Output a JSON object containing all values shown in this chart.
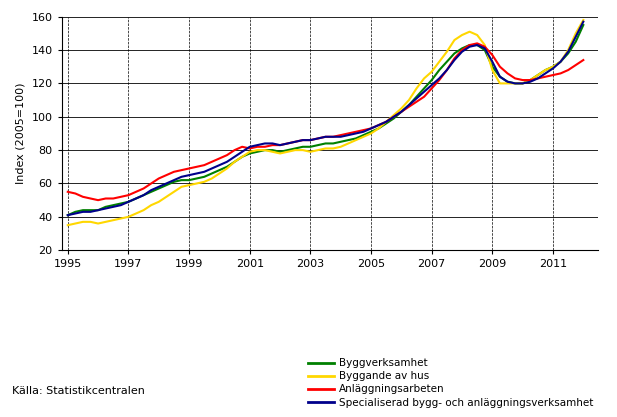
{
  "title": "",
  "ylabel": "Index (2005=100)",
  "xlabel": "",
  "source": "Källa: Statistikcentralen",
  "ylim": [
    20,
    160
  ],
  "xlim": [
    1994.8,
    2012.5
  ],
  "yticks": [
    20,
    40,
    60,
    80,
    100,
    120,
    140,
    160
  ],
  "xticks": [
    1995,
    1997,
    1999,
    2001,
    2003,
    2005,
    2007,
    2009,
    2011
  ],
  "colors": {
    "Byggverksamhet": "#008000",
    "Byggande av hus": "#FFD700",
    "Anläggningsarbeten": "#FF0000",
    "Specialiserad bygg- och anläggningsverksamhet": "#00008B"
  },
  "series": {
    "Byggverksamhet": {
      "x": [
        1995.0,
        1995.25,
        1995.5,
        1995.75,
        1996.0,
        1996.25,
        1996.5,
        1996.75,
        1997.0,
        1997.25,
        1997.5,
        1997.75,
        1998.0,
        1998.25,
        1998.5,
        1998.75,
        1999.0,
        1999.25,
        1999.5,
        1999.75,
        2000.0,
        2000.25,
        2000.5,
        2000.75,
        2001.0,
        2001.25,
        2001.5,
        2001.75,
        2002.0,
        2002.25,
        2002.5,
        2002.75,
        2003.0,
        2003.25,
        2003.5,
        2003.75,
        2004.0,
        2004.25,
        2004.5,
        2004.75,
        2005.0,
        2005.25,
        2005.5,
        2005.75,
        2006.0,
        2006.25,
        2006.5,
        2006.75,
        2007.0,
        2007.25,
        2007.5,
        2007.75,
        2008.0,
        2008.25,
        2008.5,
        2008.75,
        2009.0,
        2009.25,
        2009.5,
        2009.75,
        2010.0,
        2010.25,
        2010.5,
        2010.75,
        2011.0,
        2011.25,
        2011.5,
        2011.75,
        2012.0
      ],
      "y": [
        41,
        43,
        44,
        44,
        44,
        46,
        47,
        48,
        49,
        51,
        53,
        55,
        57,
        59,
        61,
        62,
        62,
        63,
        64,
        66,
        68,
        70,
        73,
        76,
        78,
        79,
        80,
        80,
        79,
        80,
        81,
        82,
        82,
        83,
        84,
        84,
        85,
        86,
        87,
        89,
        91,
        93,
        96,
        99,
        103,
        107,
        112,
        117,
        122,
        128,
        133,
        138,
        141,
        143,
        143,
        140,
        130,
        124,
        121,
        120,
        120,
        122,
        125,
        128,
        130,
        133,
        138,
        145,
        155
      ]
    },
    "Byggande av hus": {
      "x": [
        1995.0,
        1995.25,
        1995.5,
        1995.75,
        1996.0,
        1996.25,
        1996.5,
        1996.75,
        1997.0,
        1997.25,
        1997.5,
        1997.75,
        1998.0,
        1998.25,
        1998.5,
        1998.75,
        1999.0,
        1999.25,
        1999.5,
        1999.75,
        2000.0,
        2000.25,
        2000.5,
        2000.75,
        2001.0,
        2001.25,
        2001.5,
        2001.75,
        2002.0,
        2002.25,
        2002.5,
        2002.75,
        2003.0,
        2003.25,
        2003.5,
        2003.75,
        2004.0,
        2004.25,
        2004.5,
        2004.75,
        2005.0,
        2005.25,
        2005.5,
        2005.75,
        2006.0,
        2006.25,
        2006.5,
        2006.75,
        2007.0,
        2007.25,
        2007.5,
        2007.75,
        2008.0,
        2008.25,
        2008.5,
        2008.75,
        2009.0,
        2009.25,
        2009.5,
        2009.75,
        2010.0,
        2010.25,
        2010.5,
        2010.75,
        2011.0,
        2011.25,
        2011.5,
        2011.75,
        2012.0
      ],
      "y": [
        35,
        36,
        37,
        37,
        36,
        37,
        38,
        39,
        40,
        42,
        44,
        47,
        49,
        52,
        55,
        58,
        59,
        60,
        61,
        63,
        66,
        69,
        73,
        76,
        79,
        80,
        80,
        79,
        78,
        79,
        80,
        80,
        79,
        80,
        81,
        81,
        82,
        84,
        86,
        88,
        90,
        93,
        97,
        101,
        105,
        110,
        117,
        123,
        127,
        133,
        139,
        146,
        149,
        151,
        149,
        143,
        128,
        120,
        120,
        120,
        120,
        122,
        125,
        128,
        130,
        133,
        140,
        150,
        158
      ]
    },
    "Anläggningsarbeten": {
      "x": [
        1995.0,
        1995.25,
        1995.5,
        1995.75,
        1996.0,
        1996.25,
        1996.5,
        1996.75,
        1997.0,
        1997.25,
        1997.5,
        1997.75,
        1998.0,
        1998.25,
        1998.5,
        1998.75,
        1999.0,
        1999.25,
        1999.5,
        1999.75,
        2000.0,
        2000.25,
        2000.5,
        2000.75,
        2001.0,
        2001.25,
        2001.5,
        2001.75,
        2002.0,
        2002.25,
        2002.5,
        2002.75,
        2003.0,
        2003.25,
        2003.5,
        2003.75,
        2004.0,
        2004.25,
        2004.5,
        2004.75,
        2005.0,
        2005.25,
        2005.5,
        2005.75,
        2006.0,
        2006.25,
        2006.5,
        2006.75,
        2007.0,
        2007.25,
        2007.5,
        2007.75,
        2008.0,
        2008.25,
        2008.5,
        2008.75,
        2009.0,
        2009.25,
        2009.5,
        2009.75,
        2010.0,
        2010.25,
        2010.5,
        2010.75,
        2011.0,
        2011.25,
        2011.5,
        2011.75,
        2012.0
      ],
      "y": [
        55,
        54,
        52,
        51,
        50,
        51,
        51,
        52,
        53,
        55,
        57,
        60,
        63,
        65,
        67,
        68,
        69,
        70,
        71,
        73,
        75,
        77,
        80,
        82,
        81,
        82,
        82,
        83,
        83,
        84,
        85,
        86,
        86,
        87,
        88,
        88,
        89,
        90,
        91,
        92,
        93,
        95,
        97,
        100,
        103,
        106,
        109,
        112,
        117,
        122,
        128,
        135,
        140,
        143,
        144,
        142,
        137,
        130,
        126,
        123,
        122,
        122,
        123,
        124,
        125,
        126,
        128,
        131,
        134
      ]
    },
    "Specialiserad bygg- och anläggningsverksamhet": {
      "x": [
        1995.0,
        1995.25,
        1995.5,
        1995.75,
        1996.0,
        1996.25,
        1996.5,
        1996.75,
        1997.0,
        1997.25,
        1997.5,
        1997.75,
        1998.0,
        1998.25,
        1998.5,
        1998.75,
        1999.0,
        1999.25,
        1999.5,
        1999.75,
        2000.0,
        2000.25,
        2000.5,
        2000.75,
        2001.0,
        2001.25,
        2001.5,
        2001.75,
        2002.0,
        2002.25,
        2002.5,
        2002.75,
        2003.0,
        2003.25,
        2003.5,
        2003.75,
        2004.0,
        2004.25,
        2004.5,
        2004.75,
        2005.0,
        2005.25,
        2005.5,
        2005.75,
        2006.0,
        2006.25,
        2006.5,
        2006.75,
        2007.0,
        2007.25,
        2007.5,
        2007.75,
        2008.0,
        2008.25,
        2008.5,
        2008.75,
        2009.0,
        2009.25,
        2009.5,
        2009.75,
        2010.0,
        2010.25,
        2010.5,
        2010.75,
        2011.0,
        2011.25,
        2011.5,
        2011.75,
        2012.0
      ],
      "y": [
        41,
        42,
        43,
        43,
        44,
        45,
        46,
        47,
        49,
        51,
        53,
        56,
        58,
        60,
        62,
        64,
        65,
        66,
        67,
        69,
        71,
        73,
        76,
        79,
        82,
        83,
        84,
        84,
        83,
        84,
        85,
        86,
        86,
        87,
        88,
        88,
        88,
        89,
        90,
        91,
        93,
        95,
        97,
        100,
        103,
        107,
        111,
        115,
        119,
        123,
        128,
        134,
        139,
        142,
        143,
        141,
        133,
        124,
        121,
        120,
        120,
        121,
        123,
        126,
        129,
        133,
        139,
        148,
        157
      ]
    }
  },
  "legend_order": [
    "Byggverksamhet",
    "Byggande av hus",
    "Anläggningsarbeten",
    "Specialiserad bygg- och anläggningsverksamhet"
  ],
  "figsize": [
    6.17,
    4.17
  ],
  "dpi": 100,
  "linewidth": 1.5,
  "grid_color": "#000000",
  "hgrid_lw": 0.6,
  "vgrid_lw": 0.5,
  "tick_fontsize": 8,
  "ylabel_fontsize": 8,
  "legend_fontsize": 7.5,
  "source_fontsize": 8
}
